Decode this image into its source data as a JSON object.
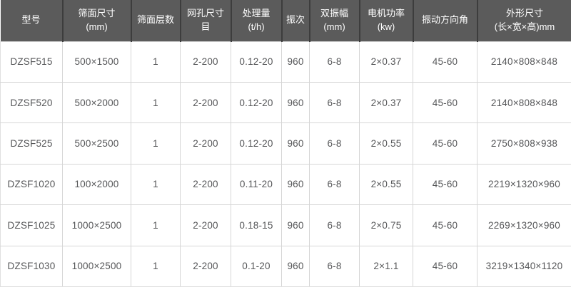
{
  "colors": {
    "header_bg": "#5b5b5b",
    "header_separator": "#3d3d3d",
    "header_text": "#ffffff",
    "body_bg": "#ffffff",
    "body_text": "#555658",
    "grid_line": "#d6d6d6"
  },
  "chart_data": {
    "type": "table",
    "title": "",
    "columns": [
      {
        "key": "model",
        "label": "型号"
      },
      {
        "key": "screen-size",
        "label": "筛面尺寸\n(mm)"
      },
      {
        "key": "screen-layers",
        "label": "筛面层数"
      },
      {
        "key": "mesh-size",
        "label": "网孔尺寸\n目"
      },
      {
        "key": "capacity",
        "label": "处理量\n(t/h)"
      },
      {
        "key": "frequency",
        "label": "振次"
      },
      {
        "key": "double-amplitude",
        "label": "双振幅\n(mm)"
      },
      {
        "key": "motor-power",
        "label": "电机功率\n(kw)"
      },
      {
        "key": "vibration-angle",
        "label": "振动方向角"
      },
      {
        "key": "dimensions",
        "label": "外形尺寸\n(长×宽×高)mm"
      }
    ],
    "rows": [
      [
        "DZSF515",
        "500×1500",
        "1",
        "2-200",
        "0.12-20",
        "960",
        "6-8",
        "2×0.37",
        "45-60",
        "2140×808×848"
      ],
      [
        "DZSF520",
        "500×2000",
        "1",
        "2-200",
        "0.12-20",
        "960",
        "6-8",
        "2×0.37",
        "45-60",
        "2140×808×848"
      ],
      [
        "DZSF525",
        "500×2500",
        "1",
        "2-200",
        "0.12-20",
        "960",
        "6-8",
        "2×0.55",
        "45-60",
        "2750×808×938"
      ],
      [
        "DZSF1020",
        "100×2000",
        "1",
        "2-200",
        "0.11-20",
        "960",
        "6-8",
        "2×0.55",
        "45-60",
        "2219×1320×960"
      ],
      [
        "DZSF1025",
        "1000×2500",
        "1",
        "2-200",
        "0.18-15",
        "960",
        "6-8",
        "2×0.75",
        "45-60",
        "2269×1320×960"
      ],
      [
        "DZSF1030",
        "1000×2500",
        "1",
        "2-200",
        "0.1-20",
        "960",
        "6-8",
        "2×1.1",
        "45-60",
        "3219×1340×1120"
      ]
    ]
  }
}
